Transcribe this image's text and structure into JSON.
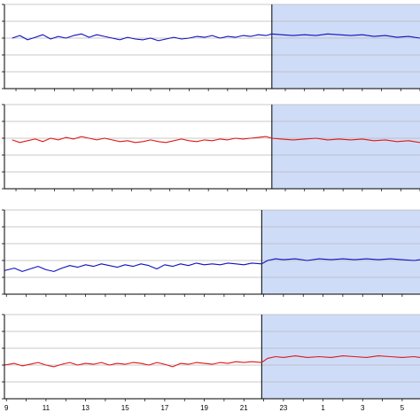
{
  "chart_data": {
    "type": "line",
    "x_tick_labels": [
      "9",
      "11",
      "13",
      "15",
      "17",
      "19",
      "21",
      "23",
      "1",
      "3",
      "5"
    ],
    "shade_color": "#cfdcf7",
    "grid_on": true,
    "panels": [
      {
        "series_color": "#1010c0",
        "shade_start_x": 22.3,
        "x_range": [
          8.4,
          30.0
        ],
        "y_range": [
          0,
          100
        ],
        "y_ticks": [
          0,
          20,
          40,
          60,
          80,
          100
        ],
        "points": [
          [
            8.8,
            60
          ],
          [
            9.2,
            63
          ],
          [
            9.6,
            58
          ],
          [
            10.0,
            61
          ],
          [
            10.4,
            64
          ],
          [
            10.8,
            59
          ],
          [
            11.2,
            62
          ],
          [
            11.6,
            60
          ],
          [
            12.0,
            63
          ],
          [
            12.4,
            65
          ],
          [
            12.8,
            61
          ],
          [
            13.2,
            64
          ],
          [
            13.6,
            62
          ],
          [
            14.0,
            60
          ],
          [
            14.4,
            58
          ],
          [
            14.8,
            61
          ],
          [
            15.2,
            59
          ],
          [
            15.6,
            58
          ],
          [
            16.0,
            60
          ],
          [
            16.4,
            57
          ],
          [
            16.8,
            59
          ],
          [
            17.2,
            61
          ],
          [
            17.6,
            59
          ],
          [
            18.0,
            60
          ],
          [
            18.4,
            62
          ],
          [
            18.8,
            61
          ],
          [
            19.2,
            63
          ],
          [
            19.6,
            60
          ],
          [
            20.0,
            62
          ],
          [
            20.4,
            61
          ],
          [
            20.8,
            63
          ],
          [
            21.2,
            62
          ],
          [
            21.6,
            64
          ],
          [
            22.0,
            63
          ],
          [
            22.3,
            65
          ],
          [
            22.8,
            64
          ],
          [
            23.4,
            63
          ],
          [
            24.0,
            64
          ],
          [
            24.6,
            63
          ],
          [
            25.2,
            65
          ],
          [
            25.8,
            64
          ],
          [
            26.4,
            63
          ],
          [
            27.0,
            64
          ],
          [
            27.6,
            62
          ],
          [
            28.2,
            63
          ],
          [
            28.8,
            61
          ],
          [
            29.4,
            62
          ],
          [
            30.0,
            60
          ]
        ]
      },
      {
        "series_color": "#e01818",
        "shade_start_x": 22.3,
        "x_range": [
          8.4,
          30.0
        ],
        "y_range": [
          0,
          100
        ],
        "y_ticks": [
          0,
          20,
          40,
          60,
          80,
          100
        ],
        "points": [
          [
            8.8,
            58
          ],
          [
            9.2,
            55
          ],
          [
            9.6,
            57
          ],
          [
            10.0,
            59
          ],
          [
            10.4,
            56
          ],
          [
            10.8,
            60
          ],
          [
            11.2,
            58
          ],
          [
            11.6,
            61
          ],
          [
            12.0,
            59
          ],
          [
            12.4,
            62
          ],
          [
            12.8,
            60
          ],
          [
            13.2,
            58
          ],
          [
            13.6,
            60
          ],
          [
            14.0,
            58
          ],
          [
            14.4,
            56
          ],
          [
            14.8,
            57
          ],
          [
            15.2,
            55
          ],
          [
            15.6,
            56
          ],
          [
            16.0,
            58
          ],
          [
            16.4,
            56
          ],
          [
            16.8,
            55
          ],
          [
            17.2,
            57
          ],
          [
            17.6,
            59
          ],
          [
            18.0,
            57
          ],
          [
            18.4,
            56
          ],
          [
            18.8,
            58
          ],
          [
            19.2,
            57
          ],
          [
            19.6,
            59
          ],
          [
            20.0,
            58
          ],
          [
            20.4,
            60
          ],
          [
            20.8,
            59
          ],
          [
            21.2,
            60
          ],
          [
            21.6,
            61
          ],
          [
            22.0,
            62
          ],
          [
            22.3,
            60
          ],
          [
            22.8,
            59
          ],
          [
            23.4,
            58
          ],
          [
            24.0,
            59
          ],
          [
            24.6,
            60
          ],
          [
            25.2,
            58
          ],
          [
            25.8,
            59
          ],
          [
            26.4,
            58
          ],
          [
            27.0,
            59
          ],
          [
            27.6,
            57
          ],
          [
            28.2,
            58
          ],
          [
            28.8,
            56
          ],
          [
            29.4,
            57
          ],
          [
            30.0,
            55
          ]
        ]
      },
      {
        "series_color": "#1010c0",
        "shade_start_x": 21.9,
        "x_range": [
          8.9,
          29.9
        ],
        "y_range": [
          0,
          100
        ],
        "y_ticks": [
          0,
          20,
          40,
          60,
          80,
          100
        ],
        "points": [
          [
            8.9,
            28
          ],
          [
            9.4,
            31
          ],
          [
            9.8,
            27
          ],
          [
            10.2,
            30
          ],
          [
            10.6,
            33
          ],
          [
            11.0,
            29
          ],
          [
            11.4,
            27
          ],
          [
            11.8,
            31
          ],
          [
            12.2,
            34
          ],
          [
            12.6,
            32
          ],
          [
            13.0,
            35
          ],
          [
            13.4,
            33
          ],
          [
            13.8,
            36
          ],
          [
            14.2,
            34
          ],
          [
            14.6,
            32
          ],
          [
            15.0,
            35
          ],
          [
            15.4,
            33
          ],
          [
            15.8,
            36
          ],
          [
            16.2,
            34
          ],
          [
            16.6,
            30
          ],
          [
            17.0,
            35
          ],
          [
            17.4,
            33
          ],
          [
            17.8,
            36
          ],
          [
            18.2,
            34
          ],
          [
            18.6,
            37
          ],
          [
            19.0,
            35
          ],
          [
            19.4,
            36
          ],
          [
            19.8,
            35
          ],
          [
            20.2,
            37
          ],
          [
            20.6,
            36
          ],
          [
            21.0,
            35
          ],
          [
            21.4,
            37
          ],
          [
            21.9,
            36
          ],
          [
            22.2,
            40
          ],
          [
            22.6,
            42
          ],
          [
            23.0,
            41
          ],
          [
            23.6,
            42
          ],
          [
            24.2,
            40
          ],
          [
            24.8,
            42
          ],
          [
            25.4,
            41
          ],
          [
            26.0,
            42
          ],
          [
            26.6,
            41
          ],
          [
            27.2,
            42
          ],
          [
            27.8,
            41
          ],
          [
            28.4,
            42
          ],
          [
            29.0,
            41
          ],
          [
            29.6,
            40
          ],
          [
            29.9,
            41
          ]
        ]
      },
      {
        "series_color": "#e01818",
        "shade_start_x": 21.9,
        "x_range": [
          8.9,
          29.9
        ],
        "y_range": [
          0,
          100
        ],
        "y_ticks": [
          0,
          20,
          40,
          60,
          80,
          100
        ],
        "points": [
          [
            8.9,
            40
          ],
          [
            9.4,
            42
          ],
          [
            9.8,
            39
          ],
          [
            10.2,
            41
          ],
          [
            10.6,
            43
          ],
          [
            11.0,
            40
          ],
          [
            11.4,
            38
          ],
          [
            11.8,
            41
          ],
          [
            12.2,
            43
          ],
          [
            12.6,
            40
          ],
          [
            13.0,
            42
          ],
          [
            13.4,
            41
          ],
          [
            13.8,
            43
          ],
          [
            14.2,
            40
          ],
          [
            14.6,
            42
          ],
          [
            15.0,
            41
          ],
          [
            15.4,
            43
          ],
          [
            15.8,
            42
          ],
          [
            16.2,
            40
          ],
          [
            16.6,
            43
          ],
          [
            17.0,
            41
          ],
          [
            17.4,
            38
          ],
          [
            17.8,
            42
          ],
          [
            18.2,
            41
          ],
          [
            18.6,
            43
          ],
          [
            19.0,
            42
          ],
          [
            19.4,
            41
          ],
          [
            19.8,
            43
          ],
          [
            20.2,
            42
          ],
          [
            20.6,
            44
          ],
          [
            21.0,
            43
          ],
          [
            21.4,
            44
          ],
          [
            21.9,
            43
          ],
          [
            22.2,
            48
          ],
          [
            22.6,
            50
          ],
          [
            23.0,
            49
          ],
          [
            23.6,
            51
          ],
          [
            24.2,
            49
          ],
          [
            24.8,
            50
          ],
          [
            25.4,
            49
          ],
          [
            26.0,
            51
          ],
          [
            26.6,
            50
          ],
          [
            27.2,
            49
          ],
          [
            27.8,
            51
          ],
          [
            28.4,
            50
          ],
          [
            29.0,
            49
          ],
          [
            29.6,
            50
          ],
          [
            29.9,
            49
          ]
        ]
      }
    ]
  }
}
